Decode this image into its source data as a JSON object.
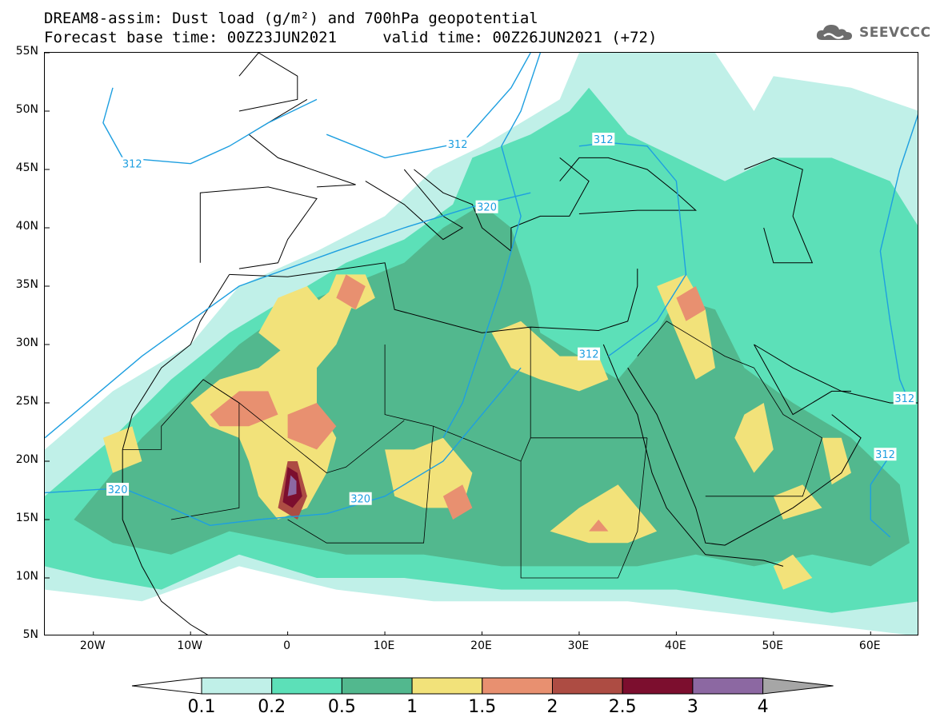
{
  "header": {
    "title_line1": "DREAM8-assim: Dust load (g/m²) and 700hPa geopotential",
    "title_line2": "Forecast base time: 00Z23JUN2021     valid time: 00Z26JUN2021 (+72)",
    "logo_text": "SEEVCCC",
    "logo_icon": "cloud-icon"
  },
  "map": {
    "extent": {
      "lon_min": -25,
      "lon_max": 65,
      "lat_min": 5,
      "lat_max": 55
    },
    "lat_labels": [
      "55N",
      "50N",
      "45N",
      "40N",
      "35N",
      "30N",
      "25N",
      "20N",
      "15N",
      "10N",
      "5N"
    ],
    "lat_values": [
      55,
      50,
      45,
      40,
      35,
      30,
      25,
      20,
      15,
      10,
      5
    ],
    "lon_labels": [
      "20W",
      "10W",
      "0",
      "10E",
      "20E",
      "30E",
      "40E",
      "50E",
      "60E"
    ],
    "lon_values": [
      -20,
      -10,
      0,
      10,
      20,
      30,
      40,
      50,
      60
    ],
    "contour_labels": [
      {
        "text": "312",
        "lon": -16,
        "lat": 45.5
      },
      {
        "text": "312",
        "lon": 17.5,
        "lat": 47.2
      },
      {
        "text": "312",
        "lon": 32.5,
        "lat": 47.6
      },
      {
        "text": "320",
        "lon": 20.5,
        "lat": 41.8
      },
      {
        "text": "312",
        "lon": 31,
        "lat": 29.2
      },
      {
        "text": "320",
        "lon": -17.5,
        "lat": 17.6
      },
      {
        "text": "320",
        "lon": 7.5,
        "lat": 16.8
      },
      {
        "text": "312",
        "lon": 63.5,
        "lat": 25.4
      },
      {
        "text": "312",
        "lon": 61.5,
        "lat": 20.6
      }
    ],
    "colors": {
      "c01": "#c0f0e8",
      "c02": "#5ce0b8",
      "c05": "#52b88e",
      "c1": "#f2e27a",
      "c15": "#e89070",
      "c2": "#ad4c43",
      "c25": "#7c0e2e",
      "c3": "#8c68a2",
      "c4": "#a6a6a6",
      "contour": "#1e9fe0",
      "coast": "#000000"
    }
  },
  "legend": {
    "levels": [
      "0.1",
      "0.2",
      "0.5",
      "1",
      "1.5",
      "2",
      "2.5",
      "3",
      "4"
    ]
  }
}
